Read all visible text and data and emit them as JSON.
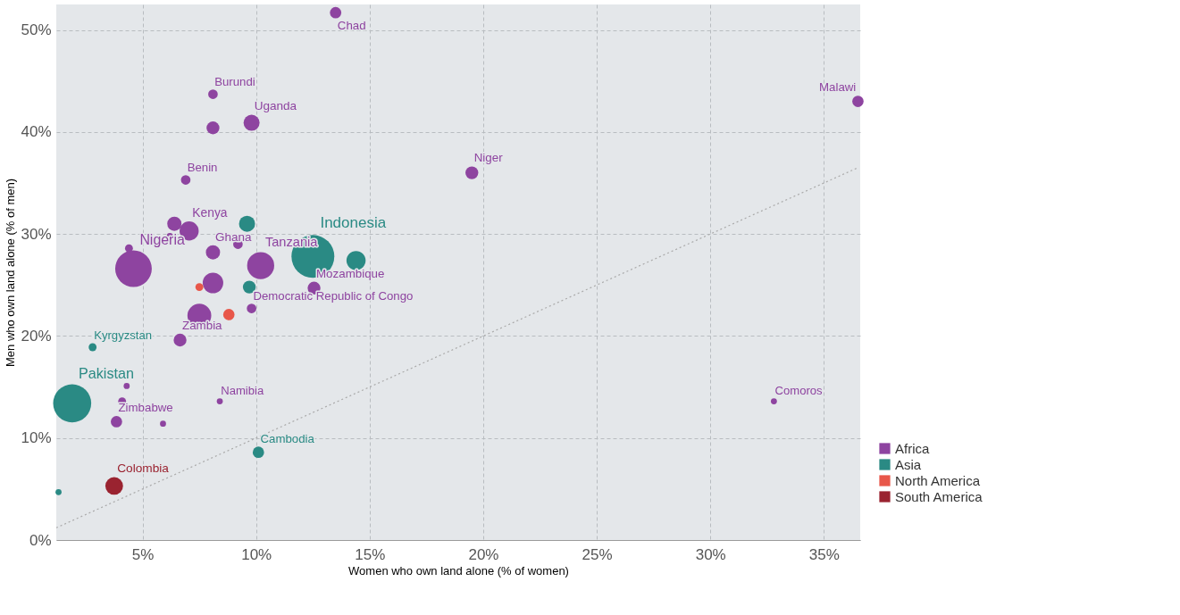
{
  "chart_data": {
    "type": "bubble",
    "xlabel": "Women who own land alone (% of women)",
    "ylabel": "Men who own land alone (% of men)",
    "xlim": [
      1.2,
      36.6
    ],
    "ylim": [
      0,
      52.5
    ],
    "xticks": [
      {
        "value": 5,
        "label": "5%"
      },
      {
        "value": 10,
        "label": "10%"
      },
      {
        "value": 15,
        "label": "15%"
      },
      {
        "value": 20,
        "label": "20%"
      },
      {
        "value": 25,
        "label": "25%"
      },
      {
        "value": 30,
        "label": "30%"
      },
      {
        "value": 35,
        "label": "35%"
      }
    ],
    "yticks": [
      {
        "value": 0,
        "label": "0%"
      },
      {
        "value": 10,
        "label": "10%"
      },
      {
        "value": 20,
        "label": "20%"
      },
      {
        "value": 30,
        "label": "30%"
      },
      {
        "value": 40,
        "label": "40%"
      },
      {
        "value": 50,
        "label": "50%"
      }
    ],
    "grid": true,
    "legend": "right",
    "series": [
      {
        "name": "Africa",
        "color": "#8e44a0",
        "x": [
          13.5,
          8.1,
          8.1,
          9.8,
          6.9,
          6.4,
          7.05,
          6.2,
          4.4,
          4.6,
          8.1,
          9.2,
          10.2,
          8.1,
          9.8,
          7.5,
          6.65,
          4.3,
          4.1,
          3.85,
          5.9,
          8.4,
          12.55,
          19.5,
          36.5,
          32.8
        ],
        "values": [
          51.7,
          43.7,
          40.4,
          40.9,
          35.3,
          31.0,
          30.3,
          29.8,
          28.6,
          26.6,
          28.2,
          29.0,
          26.9,
          25.2,
          22.7,
          22.0,
          19.6,
          15.1,
          13.6,
          11.6,
          11.4,
          13.6,
          24.7,
          36.0,
          43.0,
          13.6
        ],
        "sizes": [
          0.07,
          0.05,
          0.09,
          0.14,
          0.05,
          0.11,
          0.2,
          0.02,
          0.034,
          0.73,
          0.11,
          0.05,
          0.4,
          0.23,
          0.05,
          0.31,
          0.09,
          0.02,
          0.034,
          0.07,
          0.02,
          0.02,
          0.09,
          0.09,
          0.07,
          0.02
        ]
      },
      {
        "name": "Asia",
        "color": "#2a8a84",
        "x": [
          12.5,
          14.4,
          9.6,
          9.7,
          2.8,
          1.9,
          10.1,
          1.3
        ],
        "values": [
          27.8,
          27.4,
          31.0,
          24.8,
          18.9,
          13.4,
          8.6,
          4.7
        ],
        "sizes": [
          1,
          0.2,
          0.14,
          0.09,
          0.034,
          0.79,
          0.07,
          0.02
        ]
      },
      {
        "name": "North America",
        "color": "#e8574a",
        "x": [
          7.5,
          8.8
        ],
        "values": [
          24.8,
          22.1
        ],
        "sizes": [
          0.034,
          0.07
        ]
      },
      {
        "name": "South America",
        "color": "#9a2330",
        "x": [
          3.75
        ],
        "values": [
          5.3
        ],
        "sizes": [
          0.17
        ]
      },
      {
        "type": "line",
        "color": "#aaaaaa",
        "line_style": "dotted",
        "x": [
          1.2,
          36.5
        ],
        "values": [
          1.2,
          36.5
        ]
      }
    ],
    "annotations": [
      {
        "text": "Chad",
        "x": 13.5,
        "y": 51.7
      },
      {
        "text": "Burundi",
        "x": 8.1,
        "y": 43.7
      },
      {
        "text": "Uganda",
        "x": 9.8,
        "y": 40.9
      },
      {
        "text": "Benin",
        "x": 6.9,
        "y": 35.3
      },
      {
        "text": "Kenya",
        "x": 7.05,
        "y": 30.3
      },
      {
        "text": "Nigeria",
        "x": 4.6,
        "y": 26.6
      },
      {
        "text": "Ghana",
        "x": 8.1,
        "y": 28.2
      },
      {
        "text": "Indonesia",
        "x": 12.5,
        "y": 27.8
      },
      {
        "text": "Tanzania",
        "x": 10.2,
        "y": 26.9
      },
      {
        "text": "Mozambique",
        "x": 12.55,
        "y": 24.7
      },
      {
        "text": "Democratic Republic of Congo",
        "x": 9.8,
        "y": 22.7
      },
      {
        "text": "Zambia",
        "x": 6.65,
        "y": 19.6
      },
      {
        "text": "Kyrgyzstan",
        "x": 2.8,
        "y": 18.9
      },
      {
        "text": "Pakistan",
        "x": 1.9,
        "y": 13.4
      },
      {
        "text": "Zimbabwe",
        "x": 3.85,
        "y": 11.6
      },
      {
        "text": "Namibia",
        "x": 8.4,
        "y": 13.6
      },
      {
        "text": "Cambodia",
        "x": 10.1,
        "y": 8.6
      },
      {
        "text": "Colombia",
        "x": 3.75,
        "y": 5.3
      },
      {
        "text": "Niger",
        "x": 19.5,
        "y": 36.0
      },
      {
        "text": "Malawi",
        "x": 36.5,
        "y": 43.0
      },
      {
        "text": "Comoros",
        "x": 32.8,
        "y": 13.6
      }
    ]
  }
}
